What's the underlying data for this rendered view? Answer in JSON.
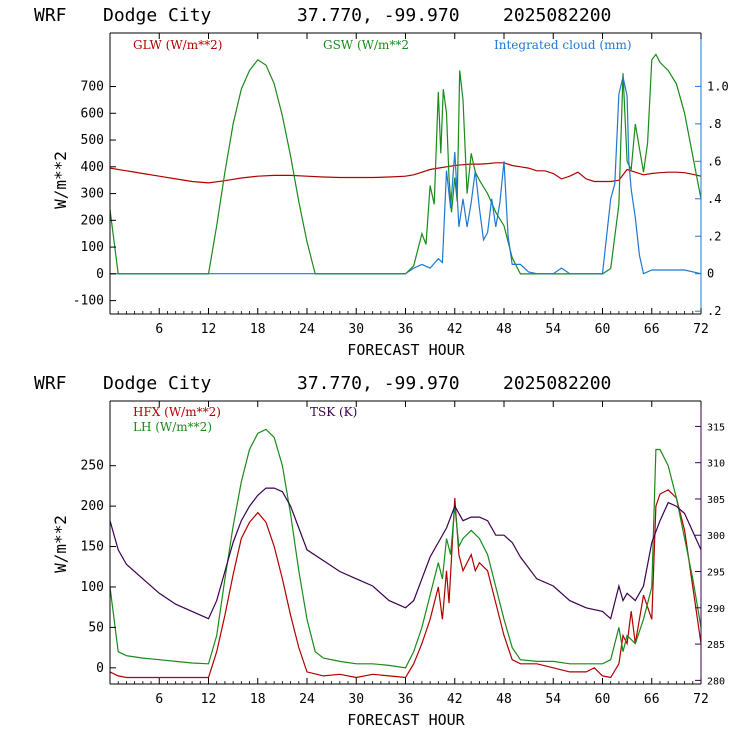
{
  "colors": {
    "red": "#b00000",
    "green": "#1a8a1a",
    "blue": "#1e78d2",
    "purple": "#3a0050",
    "axis": "#000000"
  },
  "chart_data": [
    {
      "type": "line",
      "title_parts": [
        "WRF",
        "Dodge City",
        "37.770, -99.970",
        "2025082200"
      ],
      "xlabel": "FORECAST HOUR",
      "ylabel": "W/m**2",
      "xlim": [
        0,
        72
      ],
      "ylim": [
        -150,
        900
      ],
      "xticks": [
        6,
        12,
        18,
        24,
        30,
        36,
        42,
        48,
        54,
        60,
        66,
        72
      ],
      "yticks": [
        -100,
        0,
        100,
        200,
        300,
        400,
        500,
        600,
        700
      ],
      "right_axis": {
        "ylim": [
          -0.215,
          1.285
        ],
        "ticks": [
          -0.2,
          0,
          0.2,
          0.4,
          0.6,
          0.8,
          1.0
        ],
        "tick_labels": [
          ".2",
          "0",
          ".2",
          ".4",
          ".6",
          ".8",
          "1.0"
        ]
      },
      "series": [
        {
          "name": "GLW (W/m**2)",
          "color": "red",
          "axis": "left",
          "x": [
            0,
            2,
            4,
            6,
            8,
            10,
            12,
            14,
            16,
            18,
            20,
            22,
            24,
            26,
            28,
            30,
            32,
            34,
            36,
            37,
            38,
            39,
            40,
            41,
            42,
            43,
            44,
            45,
            46,
            47,
            48,
            49,
            50,
            51,
            52,
            53,
            54,
            55,
            56,
            57,
            58,
            59,
            60,
            61,
            62,
            63,
            64,
            65,
            66,
            67,
            68,
            69,
            70,
            71,
            72
          ],
          "y": [
            395,
            385,
            375,
            365,
            355,
            345,
            340,
            348,
            358,
            365,
            368,
            368,
            365,
            362,
            360,
            360,
            360,
            362,
            365,
            370,
            380,
            390,
            395,
            400,
            405,
            408,
            410,
            410,
            412,
            415,
            415,
            405,
            400,
            395,
            385,
            385,
            375,
            355,
            365,
            380,
            355,
            345,
            345,
            345,
            350,
            390,
            380,
            370,
            375,
            378,
            380,
            380,
            378,
            372,
            365
          ]
        },
        {
          "name": "GSW (W/m**2",
          "color": "green",
          "axis": "left",
          "x": [
            0,
            1,
            12,
            13,
            14,
            15,
            16,
            17,
            18,
            19,
            20,
            21,
            22,
            23,
            24,
            25,
            36,
            37,
            38,
            38.5,
            39,
            39.5,
            40,
            40.3,
            40.6,
            41,
            41.3,
            41.6,
            42,
            42.3,
            42.6,
            43,
            43.5,
            44,
            44.5,
            45,
            46,
            47,
            48,
            49,
            50,
            60,
            61,
            62,
            62.5,
            63,
            63.5,
            64,
            64.5,
            65,
            65.5,
            66,
            66.5,
            67,
            68,
            69,
            70,
            71,
            72
          ],
          "y": [
            240,
            0,
            0,
            180,
            380,
            560,
            690,
            760,
            800,
            780,
            710,
            590,
            440,
            270,
            120,
            0,
            0,
            30,
            150,
            110,
            330,
            260,
            680,
            450,
            690,
            600,
            360,
            230,
            360,
            270,
            760,
            650,
            300,
            450,
            380,
            350,
            300,
            230,
            180,
            60,
            0,
            0,
            20,
            260,
            750,
            420,
            390,
            560,
            470,
            380,
            490,
            800,
            820,
            790,
            760,
            710,
            600,
            440,
            280
          ]
        },
        {
          "name": "Integrated cloud (mm)",
          "color": "blue",
          "axis": "right",
          "x": [
            0,
            36,
            37,
            38,
            39,
            40,
            40.5,
            41,
            41.5,
            42,
            42.5,
            43,
            43.5,
            44,
            44.5,
            45,
            45.5,
            46,
            46.5,
            47,
            47.5,
            48,
            48.5,
            49,
            50,
            51,
            52,
            54,
            55,
            56,
            57,
            60,
            61,
            61.5,
            62,
            62.5,
            63,
            63.2,
            63.5,
            64,
            64.5,
            65,
            66,
            70,
            72
          ],
          "y": [
            0,
            0,
            0.03,
            0.05,
            0.03,
            0.08,
            0.06,
            0.55,
            0.35,
            0.65,
            0.25,
            0.4,
            0.25,
            0.38,
            0.55,
            0.35,
            0.18,
            0.22,
            0.4,
            0.25,
            0.38,
            0.6,
            0.2,
            0.05,
            0.05,
            0.01,
            0,
            0,
            0.03,
            0,
            0,
            0,
            0.4,
            0.48,
            0.96,
            1.05,
            0.95,
            0.6,
            0.45,
            0.3,
            0.1,
            0,
            0.02,
            0.02,
            0
          ]
        }
      ],
      "legend": [
        "GLW (W/m**2)",
        "GSW (W/m**2",
        "Integrated cloud (mm)"
      ]
    },
    {
      "type": "line",
      "title_parts": [
        "WRF",
        "Dodge City",
        "37.770, -99.970",
        "2025082200"
      ],
      "xlabel": "FORECAST HOUR",
      "ylabel": "W/m**2",
      "xlim": [
        0,
        72
      ],
      "ylim": [
        -20,
        330
      ],
      "xticks": [
        6,
        12,
        18,
        24,
        30,
        36,
        42,
        48,
        54,
        60,
        66,
        72
      ],
      "yticks": [
        0,
        50,
        100,
        150,
        200,
        250
      ],
      "right_axis": {
        "ylim": [
          279.5,
          318.5
        ],
        "ticks": [
          280,
          285,
          290,
          295,
          300,
          305,
          310,
          315
        ],
        "tick_labels": [
          "280",
          "285",
          "290",
          "295",
          "300",
          "305",
          "310",
          "315"
        ]
      },
      "series": [
        {
          "name": "HFX (W/m**2)",
          "color": "red",
          "axis": "left",
          "x": [
            0,
            1,
            2,
            4,
            6,
            8,
            10,
            12,
            13,
            14,
            15,
            16,
            17,
            18,
            19,
            20,
            21,
            22,
            23,
            24,
            26,
            28,
            30,
            32,
            34,
            36,
            37,
            38,
            39,
            40,
            40.5,
            41,
            41.3,
            42,
            42.5,
            43,
            44,
            44.5,
            45,
            46,
            47,
            48,
            49,
            50,
            52,
            54,
            56,
            58,
            59,
            60,
            61,
            62,
            62.5,
            63,
            63.5,
            64,
            65,
            66,
            66.5,
            67,
            68,
            69,
            70,
            71,
            72
          ],
          "y": [
            -5,
            -10,
            -12,
            -12,
            -12,
            -12,
            -12,
            -12,
            20,
            65,
            115,
            160,
            180,
            192,
            180,
            150,
            110,
            65,
            25,
            -5,
            -10,
            -8,
            -12,
            -8,
            -10,
            -12,
            5,
            30,
            60,
            100,
            60,
            120,
            80,
            210,
            140,
            120,
            140,
            120,
            130,
            120,
            80,
            40,
            10,
            5,
            5,
            0,
            -5,
            -5,
            0,
            -10,
            -12,
            5,
            40,
            30,
            70,
            30,
            90,
            60,
            200,
            215,
            220,
            210,
            170,
            100,
            30
          ]
        },
        {
          "name": "LH  (W/m**2)",
          "color": "green",
          "axis": "left",
          "x": [
            0,
            1,
            2,
            4,
            6,
            8,
            10,
            12,
            13,
            14,
            15,
            16,
            17,
            18,
            19,
            20,
            21,
            22,
            23,
            24,
            25,
            26,
            28,
            30,
            32,
            34,
            36,
            37,
            38,
            39,
            40,
            40.5,
            41,
            41.5,
            42,
            42.5,
            43,
            44,
            45,
            46,
            47,
            48,
            49,
            50,
            52,
            54,
            56,
            58,
            60,
            61,
            62,
            62.5,
            63,
            64,
            65,
            66,
            66.5,
            67,
            68,
            69,
            70,
            71,
            72
          ],
          "y": [
            100,
            20,
            15,
            12,
            10,
            8,
            6,
            5,
            40,
            110,
            175,
            230,
            270,
            290,
            295,
            285,
            250,
            190,
            120,
            60,
            20,
            12,
            8,
            5,
            5,
            3,
            0,
            20,
            50,
            90,
            130,
            110,
            160,
            140,
            200,
            150,
            160,
            170,
            160,
            140,
            100,
            60,
            25,
            10,
            8,
            8,
            5,
            5,
            5,
            10,
            50,
            20,
            40,
            30,
            60,
            100,
            270,
            270,
            250,
            210,
            160,
            110,
            50
          ]
        },
        {
          "name": "TSK (K)",
          "color": "purple",
          "axis": "right",
          "x": [
            0,
            1,
            2,
            4,
            6,
            8,
            10,
            12,
            13,
            14,
            15,
            16,
            17,
            18,
            19,
            20,
            21,
            22,
            23,
            24,
            26,
            28,
            30,
            32,
            34,
            36,
            37,
            38,
            39,
            40,
            41,
            42,
            43,
            44,
            45,
            46,
            47,
            48,
            49,
            50,
            52,
            54,
            56,
            58,
            60,
            61,
            62,
            62.5,
            63,
            64,
            65,
            66,
            67,
            68,
            69,
            70,
            71,
            72
          ],
          "y": [
            302,
            298,
            296,
            294,
            292,
            290.5,
            289.5,
            288.5,
            291,
            295,
            299,
            302,
            304,
            305.5,
            306.5,
            306.5,
            306,
            304,
            301,
            298,
            296.5,
            295,
            294,
            293,
            291,
            290,
            291,
            294,
            297,
            299,
            301,
            304,
            302,
            302.5,
            302.5,
            302,
            300,
            300,
            299,
            297,
            294,
            293,
            291,
            290,
            289.5,
            288.5,
            293,
            291,
            292,
            291,
            293,
            299,
            302,
            304.5,
            304,
            303,
            300.5,
            298
          ]
        }
      ],
      "legend": [
        "HFX (W/m**2)",
        "LH  (W/m**2)",
        "TSK (K)"
      ]
    }
  ]
}
